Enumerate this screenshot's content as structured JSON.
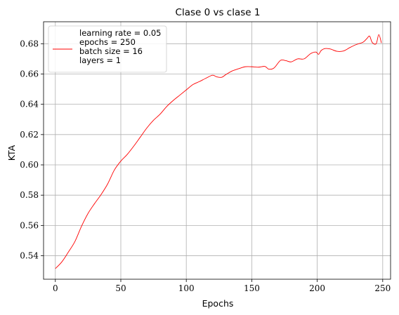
{
  "chart_data": {
    "type": "line",
    "title": "Clase 0 vs clase 1",
    "xlabel": "Epochs",
    "ylabel": "KTA",
    "xlim": [
      -9,
      256
    ],
    "ylim": [
      0.5245,
      0.6945
    ],
    "xticks": [
      0,
      50,
      100,
      150,
      200,
      250
    ],
    "yticks": [
      0.54,
      0.56,
      0.58,
      0.6,
      0.62,
      0.64,
      0.66,
      0.68
    ],
    "xtick_labels": [
      "0",
      "50",
      "100",
      "150",
      "200",
      "250"
    ],
    "ytick_labels": [
      "0.54",
      "0.56",
      "0.58",
      "0.60",
      "0.62",
      "0.64",
      "0.66",
      "0.68"
    ],
    "grid": true,
    "legend_position": "upper-left",
    "color": "#ff0000",
    "series": [
      {
        "name": "learning rate = 0.05\nepochs = 250\nbatch size = 16\nlayers = 1",
        "x": [
          0,
          5,
          10,
          15,
          20,
          25,
          30,
          35,
          40,
          45,
          50,
          55,
          60,
          65,
          70,
          75,
          80,
          85,
          90,
          95,
          100,
          105,
          110,
          115,
          120,
          123,
          127,
          130,
          135,
          140,
          145,
          150,
          155,
          160,
          163,
          167,
          172,
          176,
          180,
          185,
          190,
          195,
          199,
          201,
          203,
          206,
          210,
          215,
          220,
          225,
          230,
          235,
          238,
          240,
          242,
          245,
          247,
          249
        ],
        "y": [
          0.5315,
          0.536,
          0.5425,
          0.5495,
          0.5595,
          0.568,
          0.5745,
          0.5805,
          0.5875,
          0.5965,
          0.6025,
          0.607,
          0.6125,
          0.6185,
          0.6245,
          0.6295,
          0.6335,
          0.6385,
          0.6425,
          0.646,
          0.6495,
          0.653,
          0.655,
          0.6572,
          0.6592,
          0.6582,
          0.6578,
          0.6595,
          0.662,
          0.6635,
          0.6648,
          0.6648,
          0.6645,
          0.665,
          0.6632,
          0.664,
          0.669,
          0.6688,
          0.668,
          0.67,
          0.67,
          0.6735,
          0.6745,
          0.673,
          0.6755,
          0.6768,
          0.6765,
          0.675,
          0.6752,
          0.6775,
          0.6795,
          0.681,
          0.6835,
          0.685,
          0.6808,
          0.68,
          0.686,
          0.6805
        ]
      }
    ]
  }
}
